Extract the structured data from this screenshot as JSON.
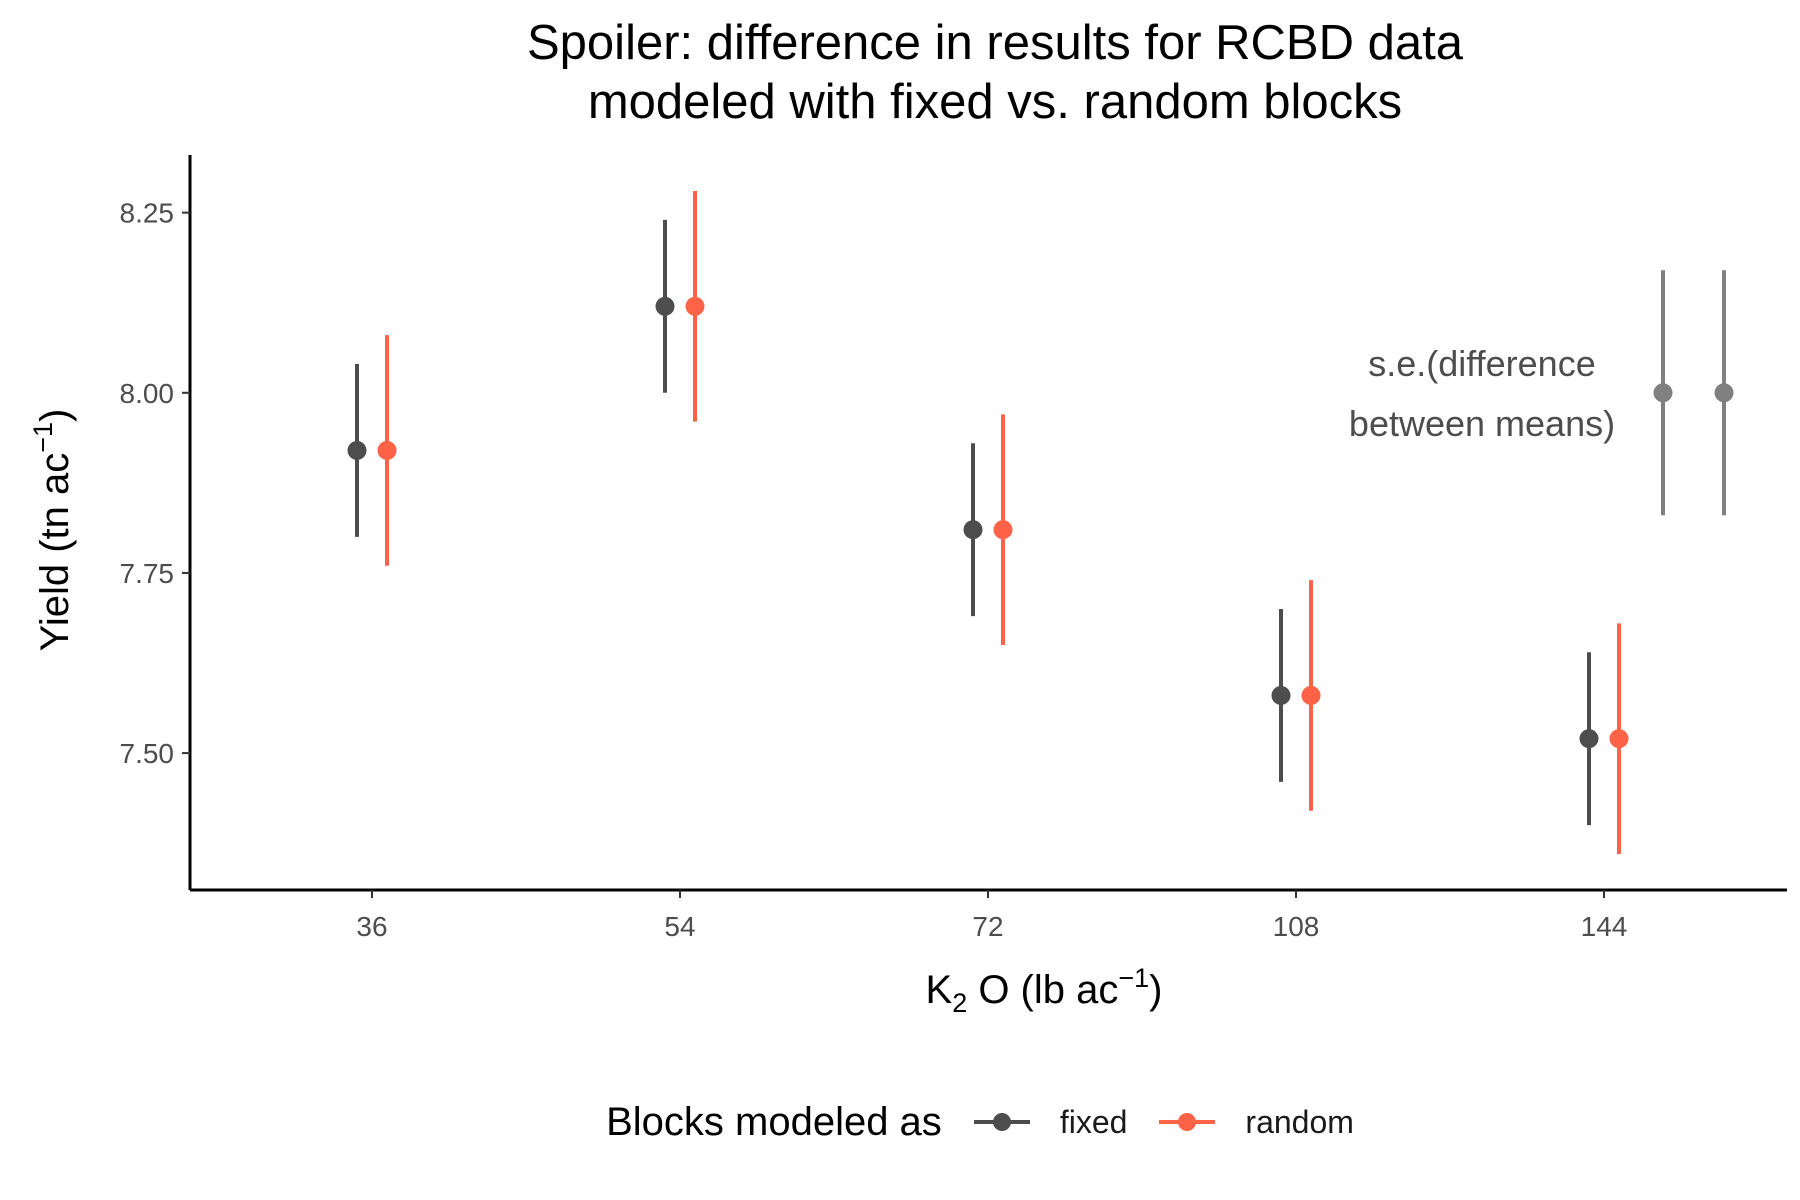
{
  "title": {
    "line1": "Spoiler: difference in results for RCBD data",
    "line2": "modeled with fixed vs. random blocks"
  },
  "chart_data": {
    "type": "scatter",
    "subtype": "pointrange",
    "title": "Spoiler: difference in results for RCBD data modeled with fixed vs. random blocks",
    "xlabel": "K2 O (lb ac-1)",
    "ylabel": "Yield (tn ac-1)",
    "categories": [
      "36",
      "54",
      "72",
      "108",
      "144"
    ],
    "ylim": [
      7.31,
      8.33
    ],
    "yticks": [
      7.5,
      7.75,
      8.0,
      8.25
    ],
    "ytick_labels": [
      "7.50",
      "7.75",
      "8.00",
      "8.25"
    ],
    "grid": false,
    "legend_position": "bottom",
    "series": [
      {
        "name": "fixed",
        "color": "#4d4d4d",
        "values": [
          7.92,
          8.12,
          7.81,
          7.58,
          7.52
        ],
        "lower": [
          7.8,
          8.0,
          7.69,
          7.46,
          7.4
        ],
        "upper": [
          8.04,
          8.24,
          7.93,
          7.7,
          7.64
        ]
      },
      {
        "name": "random",
        "color": "#ff6347",
        "values": [
          7.92,
          8.12,
          7.81,
          7.58,
          7.52
        ],
        "lower": [
          7.76,
          7.96,
          7.65,
          7.42,
          7.36
        ],
        "upper": [
          8.08,
          8.28,
          7.97,
          7.74,
          7.68
        ]
      }
    ],
    "annotation": {
      "line1": "s.e.(difference",
      "line2": "between means)",
      "color": "#808080",
      "bars": [
        {
          "value": 8.0,
          "lower": 7.83,
          "upper": 8.17
        },
        {
          "value": 8.0,
          "lower": 7.83,
          "upper": 8.17
        }
      ]
    }
  },
  "axis": {
    "x_title_main": "K",
    "x_title_sub": "2",
    "x_title_rest": " O (lb ac",
    "x_title_sup": "−1",
    "x_title_end": ")",
    "y_title_main": "Yield (tn ac",
    "y_title_sup": "−1",
    "y_title_end": ")"
  },
  "legend": {
    "title": "Blocks modeled as",
    "items": [
      {
        "label": "fixed",
        "color": "#4d4d4d"
      },
      {
        "label": "random",
        "color": "#ff6347"
      }
    ]
  }
}
